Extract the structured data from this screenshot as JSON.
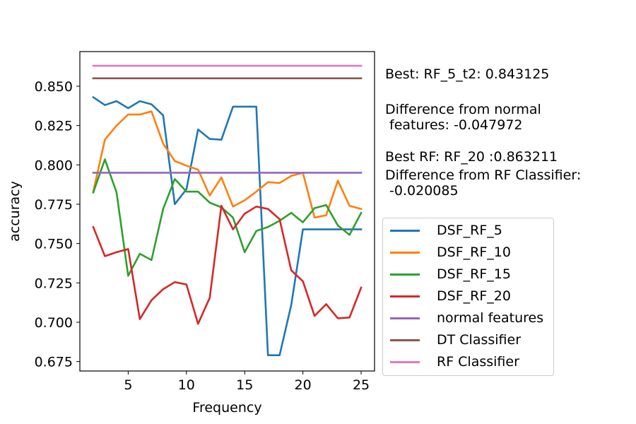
{
  "chart_data": {
    "type": "line",
    "xlabel": "Frequency",
    "ylabel": "accuracy",
    "xlim": [
      0.85,
      26.15
    ],
    "ylim": [
      0.669,
      0.872
    ],
    "xticks": [
      5,
      10,
      15,
      20,
      25
    ],
    "yticks": [
      0.675,
      0.7,
      0.725,
      0.75,
      0.775,
      0.8,
      0.825,
      0.85
    ],
    "ytick_labels": [
      "0.675",
      "0.700",
      "0.725",
      "0.750",
      "0.775",
      "0.800",
      "0.825",
      "0.850"
    ],
    "x": [
      2,
      3,
      4,
      5,
      6,
      7,
      8,
      9,
      10,
      11,
      12,
      13,
      14,
      15,
      16,
      17,
      18,
      19,
      20,
      21,
      22,
      23,
      24,
      25
    ],
    "series": [
      {
        "name": "DSF_RF_5",
        "color": "#1f77b4",
        "values": [
          0.843,
          0.838,
          0.8405,
          0.836,
          0.8405,
          0.8385,
          0.8315,
          0.775,
          0.7845,
          0.8225,
          0.8165,
          0.816,
          0.837,
          0.837,
          0.837,
          0.679,
          0.679,
          0.711,
          0.759,
          0.759,
          0.759,
          0.759,
          0.759,
          0.759
        ]
      },
      {
        "name": "DSF_RF_10",
        "color": "#ff7f0e",
        "values": [
          0.783,
          0.816,
          0.825,
          0.832,
          0.832,
          0.834,
          0.8135,
          0.8025,
          0.7995,
          0.797,
          0.7805,
          0.792,
          0.7735,
          0.7775,
          0.783,
          0.789,
          0.7885,
          0.793,
          0.795,
          0.7665,
          0.768,
          0.79,
          0.774,
          0.772
        ]
      },
      {
        "name": "DSF_RF_15",
        "color": "#2ca02c",
        "values": [
          0.7825,
          0.8035,
          0.7825,
          0.7295,
          0.7435,
          0.7395,
          0.772,
          0.791,
          0.783,
          0.783,
          0.776,
          0.773,
          0.7665,
          0.7445,
          0.758,
          0.7605,
          0.7645,
          0.7695,
          0.7635,
          0.7725,
          0.7745,
          0.7615,
          0.7555,
          0.7695
        ]
      },
      {
        "name": "DSF_RF_20",
        "color": "#d62728",
        "values": [
          0.7605,
          0.742,
          0.7445,
          0.7465,
          0.702,
          0.714,
          0.721,
          0.7255,
          0.724,
          0.699,
          0.7155,
          0.774,
          0.759,
          0.769,
          0.7735,
          0.772,
          0.7655,
          0.733,
          0.726,
          0.704,
          0.7115,
          0.7025,
          0.703,
          0.722
        ]
      },
      {
        "name": "normal features",
        "color": "#9467bd",
        "values": [
          0.795,
          0.795,
          0.795,
          0.795,
          0.795,
          0.795,
          0.795,
          0.795,
          0.795,
          0.795,
          0.795,
          0.795,
          0.795,
          0.795,
          0.795,
          0.795,
          0.795,
          0.795,
          0.795,
          0.795,
          0.795,
          0.795,
          0.795,
          0.795
        ]
      },
      {
        "name": "DT Classifier",
        "color": "#8c564b",
        "values": [
          0.855,
          0.855,
          0.855,
          0.855,
          0.855,
          0.855,
          0.855,
          0.855,
          0.855,
          0.855,
          0.855,
          0.855,
          0.855,
          0.855,
          0.855,
          0.855,
          0.855,
          0.855,
          0.855,
          0.855,
          0.855,
          0.855,
          0.855,
          0.855
        ]
      },
      {
        "name": "RF Classifier",
        "color": "#e377c2",
        "values": [
          0.863,
          0.863,
          0.863,
          0.863,
          0.863,
          0.863,
          0.863,
          0.863,
          0.863,
          0.863,
          0.863,
          0.863,
          0.863,
          0.863,
          0.863,
          0.863,
          0.863,
          0.863,
          0.863,
          0.863,
          0.863,
          0.863,
          0.863,
          0.863
        ]
      }
    ],
    "legend_position": "right",
    "annotation": {
      "best_line": "Best: RF_5_t2: 0.843125",
      "diff_normal_line1": "Difference from normal",
      "diff_normal_line2": " features: -0.047972",
      "best_rf_line": "Best RF: RF_20 :0.863211",
      "diff_rf_line1": "Difference from RF Classifier:",
      "diff_rf_line2": " -0.020085"
    }
  }
}
